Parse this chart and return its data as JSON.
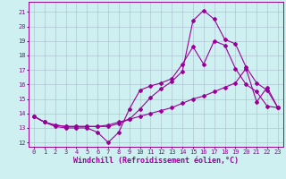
{
  "xlabel": "Windchill (Refroidissement éolien,°C)",
  "xlim": [
    -0.5,
    23.5
  ],
  "ylim": [
    11.7,
    21.7
  ],
  "yticks": [
    12,
    13,
    14,
    15,
    16,
    17,
    18,
    19,
    20,
    21
  ],
  "xticks": [
    0,
    1,
    2,
    3,
    4,
    5,
    6,
    7,
    8,
    9,
    10,
    11,
    12,
    13,
    14,
    15,
    16,
    17,
    18,
    19,
    20,
    21,
    22,
    23
  ],
  "bg_color": "#cff0f0",
  "line_color": "#990099",
  "grid_color": "#aabbcc",
  "line1_x": [
    0,
    1,
    2,
    3,
    4,
    5,
    6,
    7,
    8,
    9,
    10,
    11,
    12,
    13,
    14,
    15,
    16,
    17,
    18,
    19,
    20,
    21,
    22,
    23
  ],
  "line1_y": [
    13.8,
    13.4,
    13.1,
    13.0,
    13.0,
    13.0,
    12.7,
    12.0,
    12.7,
    14.3,
    15.6,
    15.9,
    16.1,
    16.4,
    17.4,
    18.6,
    17.4,
    19.0,
    18.7,
    17.1,
    16.0,
    15.5,
    14.5,
    14.4
  ],
  "line2_x": [
    0,
    1,
    2,
    3,
    4,
    5,
    6,
    7,
    8,
    9,
    10,
    11,
    12,
    13,
    14,
    15,
    16,
    17,
    18,
    19,
    20,
    21,
    22,
    23
  ],
  "line2_y": [
    13.8,
    13.4,
    13.2,
    13.1,
    13.1,
    13.1,
    13.1,
    13.1,
    13.3,
    13.6,
    14.3,
    15.1,
    15.7,
    16.2,
    16.9,
    20.4,
    21.1,
    20.5,
    19.1,
    18.8,
    17.2,
    16.1,
    15.6,
    14.4
  ],
  "line3_x": [
    0,
    1,
    2,
    3,
    4,
    5,
    6,
    7,
    8,
    9,
    10,
    11,
    12,
    13,
    14,
    15,
    16,
    17,
    18,
    19,
    20,
    21,
    22,
    23
  ],
  "line3_y": [
    13.8,
    13.4,
    13.2,
    13.1,
    13.1,
    13.1,
    13.1,
    13.2,
    13.4,
    13.6,
    13.8,
    14.0,
    14.2,
    14.4,
    14.7,
    15.0,
    15.2,
    15.5,
    15.8,
    16.1,
    17.1,
    14.8,
    15.8,
    14.4
  ],
  "marker": "D",
  "markersize": 2.0,
  "linewidth": 0.8,
  "tick_fontsize": 5.0,
  "xlabel_fontsize": 6.0
}
